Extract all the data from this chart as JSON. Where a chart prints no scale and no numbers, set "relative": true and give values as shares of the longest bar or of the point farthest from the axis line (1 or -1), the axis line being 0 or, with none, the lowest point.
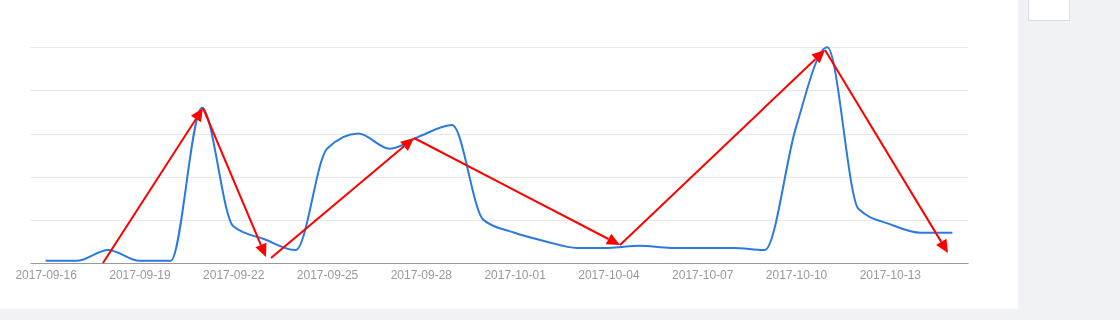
{
  "chart_data": {
    "type": "line",
    "relative": true,
    "grid": "y",
    "categories": [
      "2017-09-16",
      null,
      null,
      "2017-09-19",
      null,
      null,
      "2017-09-22",
      null,
      null,
      "2017-09-25",
      null,
      null,
      "2017-09-28",
      null,
      null,
      "2017-10-01",
      null,
      null,
      "2017-10-04",
      null,
      null,
      "2017-10-07",
      null,
      null,
      "2017-10-10",
      null,
      null,
      "2017-10-13",
      null,
      null
    ],
    "series": [
      {
        "color": "#2a7ae2",
        "values": [
          0.01,
          0.01,
          0.06,
          0.01,
          0.01,
          0.72,
          0.17,
          0.11,
          0.06,
          0.53,
          0.6,
          0.53,
          0.59,
          0.64,
          0.2,
          0.14,
          0.1,
          0.07,
          0.07,
          0.08,
          0.07,
          0.07,
          0.07,
          0.06,
          0.63,
          1,
          0.25,
          0.18,
          0.14,
          0.14
        ]
      }
    ]
  }
}
